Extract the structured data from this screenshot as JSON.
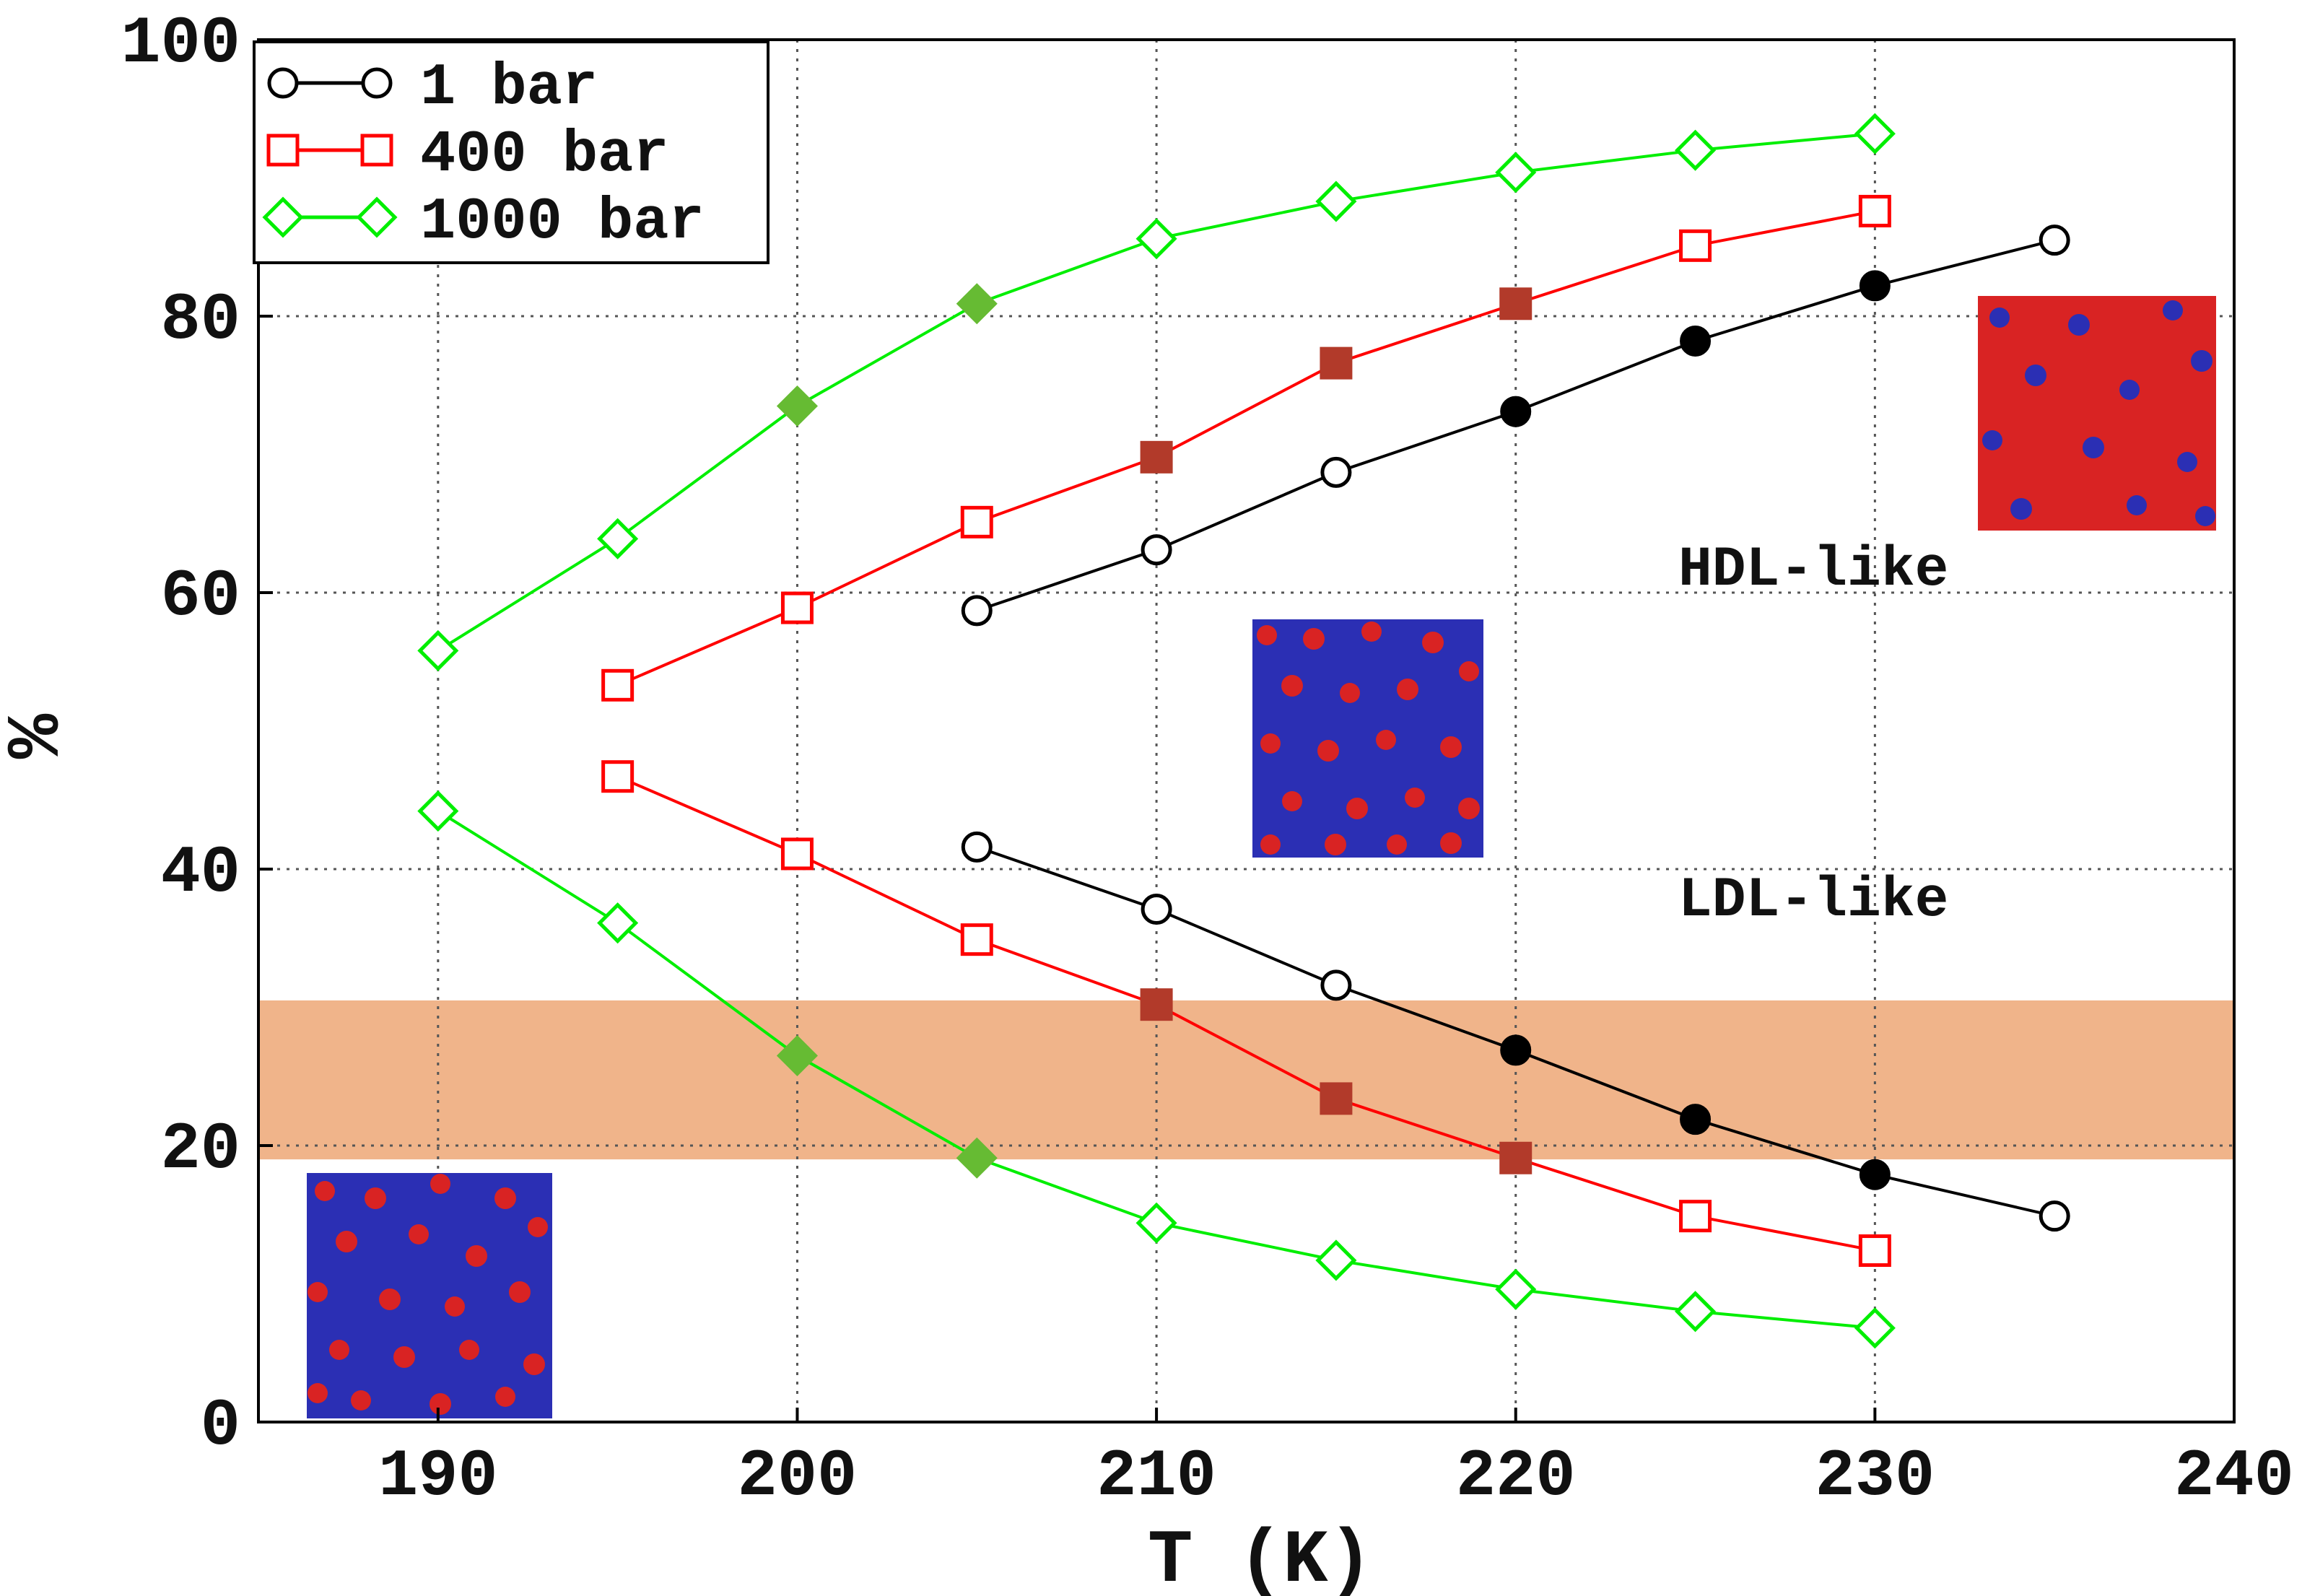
{
  "chart_data": {
    "type": "line",
    "title": "",
    "xlabel": "T (K)",
    "ylabel": "%",
    "xlim": [
      185,
      240
    ],
    "ylim": [
      0,
      100
    ],
    "xticks": [
      190,
      200,
      210,
      220,
      230,
      240
    ],
    "yticks": [
      0,
      20,
      40,
      60,
      80,
      100
    ],
    "grid": true,
    "legend_position": "top-left",
    "highlight_band": {
      "y_from": 19,
      "y_to": 30.5,
      "color": "#f0b48a"
    },
    "annotations": [
      "HDL-like",
      "LDL-like"
    ],
    "series": [
      {
        "name": "1 bar",
        "color": "#000000",
        "marker": "circle",
        "marker_color": "#000000",
        "branches": [
          {
            "part": "HDL-like",
            "x": [
              205,
              210,
              215,
              220,
              225,
              230,
              235
            ],
            "y": [
              58.7,
              63.1,
              68.7,
              73.1,
              78.2,
              82.2,
              85.5
            ],
            "filled": [
              false,
              false,
              false,
              true,
              true,
              true,
              false
            ]
          },
          {
            "part": "LDL-like",
            "x": [
              205,
              210,
              215,
              220,
              225,
              230,
              235
            ],
            "y": [
              41.6,
              37.1,
              31.6,
              26.9,
              21.9,
              17.9,
              14.9
            ],
            "filled": [
              false,
              false,
              false,
              true,
              true,
              true,
              false
            ]
          }
        ]
      },
      {
        "name": "400 bar",
        "color": "#ff0000",
        "marker": "square",
        "marker_color": "#b23a2a",
        "branches": [
          {
            "part": "HDL-like",
            "x": [
              195,
              200,
              205,
              210,
              215,
              220,
              225,
              230
            ],
            "y": [
              53.3,
              58.9,
              65.1,
              69.8,
              76.6,
              80.9,
              85.1,
              87.6
            ],
            "filled": [
              false,
              false,
              false,
              true,
              true,
              true,
              false,
              false
            ]
          },
          {
            "part": "LDL-like",
            "x": [
              195,
              200,
              205,
              210,
              215,
              220,
              225,
              230
            ],
            "y": [
              46.7,
              41.1,
              34.9,
              30.2,
              23.4,
              19.1,
              14.9,
              12.4
            ],
            "filled": [
              false,
              false,
              false,
              true,
              true,
              true,
              false,
              false
            ]
          }
        ]
      },
      {
        "name": "1000 bar",
        "color": "#00ee00",
        "marker": "diamond",
        "marker_color": "#66bb33",
        "branches": [
          {
            "part": "HDL-like",
            "x": [
              190,
              195,
              200,
              205,
              210,
              215,
              220,
              225,
              230
            ],
            "y": [
              55.8,
              63.9,
              73.5,
              80.9,
              85.6,
              88.3,
              90.4,
              92.0,
              93.2
            ],
            "filled": [
              false,
              false,
              true,
              true,
              false,
              false,
              false,
              false,
              false
            ]
          },
          {
            "part": "LDL-like",
            "x": [
              190,
              195,
              200,
              205,
              210,
              215,
              220,
              225,
              230
            ],
            "y": [
              44.2,
              36.1,
              26.5,
              19.1,
              14.4,
              11.7,
              9.6,
              8.0,
              6.8
            ],
            "filled": [
              false,
              false,
              true,
              true,
              false,
              false,
              false,
              false,
              false
            ]
          }
        ]
      }
    ]
  }
}
